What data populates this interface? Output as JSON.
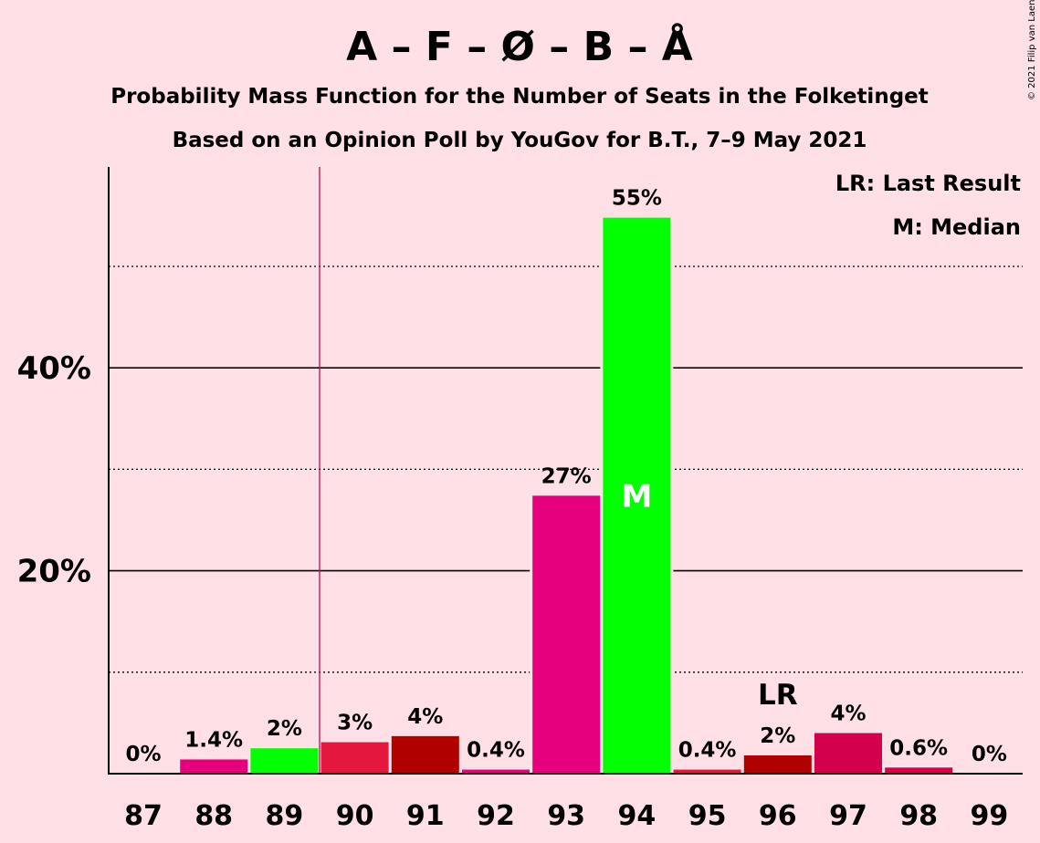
{
  "title": "A – F – Ø – B – Å",
  "subtitle1": "Probability Mass Function for the Number of Seats in the Folketinget",
  "subtitle2": "Based on an Opinion Poll by YouGov for B.T., 7–9 May 2021",
  "copyright": "© 2021 Filip van Laenen",
  "legend": {
    "lr": "LR: Last Result",
    "median": "M: Median"
  },
  "markers": {
    "median_label": "M",
    "median_seat": 94,
    "lr_label": "LR",
    "lr_seat": 96,
    "last_result_line_after_seat": 89
  },
  "chart_data": {
    "type": "bar",
    "categories": [
      "87",
      "88",
      "89",
      "90",
      "91",
      "92",
      "93",
      "94",
      "95",
      "96",
      "97",
      "98",
      "99"
    ],
    "values": [
      0,
      1.4,
      2.5,
      3.1,
      3.7,
      0.4,
      27.4,
      54.8,
      0.4,
      1.8,
      4.0,
      0.6,
      0
    ],
    "labels": [
      "0%",
      "1.4%",
      "2%",
      "3%",
      "4%",
      "0.4%",
      "27%",
      "55%",
      "0.4%",
      "2%",
      "4%",
      "0.6%",
      "0%"
    ],
    "colors": [
      "#E6007E",
      "#E6007E",
      "#00FF00",
      "#E4173F",
      "#B00000",
      "#E6007E",
      "#E6007E",
      "#00FF00",
      "#E4173F",
      "#B00000",
      "#D3004C",
      "#D3004C",
      "#E6007E"
    ],
    "ylim": [
      0,
      60
    ],
    "yticks": [
      {
        "value": 20,
        "label": "20%"
      },
      {
        "value": 40,
        "label": "40%"
      }
    ],
    "minor_gridlines": [
      10,
      30,
      50
    ],
    "xlabel": "",
    "ylabel": "",
    "legend_position": "top-right"
  }
}
